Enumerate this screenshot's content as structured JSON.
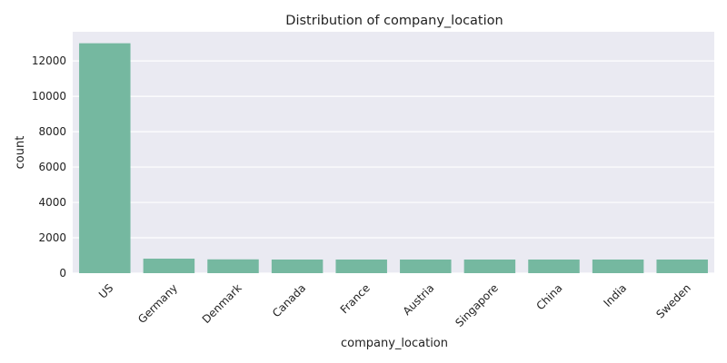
{
  "chart_data": {
    "type": "bar",
    "title": "Distribution of company_location",
    "xlabel": "company_location",
    "ylabel": "count",
    "categories": [
      "US",
      "Germany",
      "Denmark",
      "Canada",
      "France",
      "Austria",
      "Singapore",
      "China",
      "India",
      "Sweden"
    ],
    "values": [
      13000,
      820,
      780,
      770,
      770,
      770,
      770,
      770,
      770,
      770
    ],
    "ylim": [
      0,
      13650
    ],
    "yticks": [
      0,
      2000,
      4000,
      6000,
      8000,
      10000,
      12000
    ],
    "grid": true,
    "colors": {
      "bar": "#75b8a0",
      "plot_background": "#eaeaf2",
      "grid": "#ffffff"
    }
  }
}
